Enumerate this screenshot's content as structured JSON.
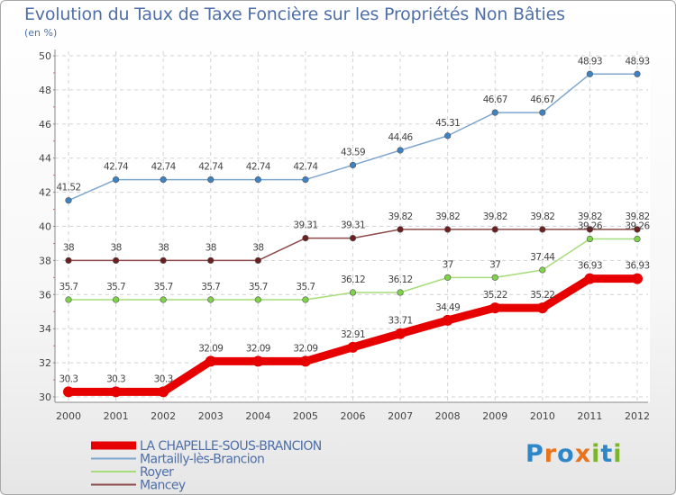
{
  "header": {
    "title": "Evolution du Taux de Taxe Foncière sur les Propriétés Non Bâties",
    "unit": "(en %)"
  },
  "brand": {
    "letters": [
      "P",
      "r",
      "o",
      "x",
      "i",
      "t",
      "i"
    ],
    "colors": [
      "#2f87c8",
      "#e8731c",
      "#2f87c8",
      "#e8731c",
      "#7cb42a",
      "#2f87c8",
      "#7cb42a"
    ]
  },
  "chart_data": {
    "type": "line",
    "title": "Evolution du Taux de Taxe Foncière sur les Propriétés Non Bâties",
    "ylabel": "(en %)",
    "x": [
      "2000",
      "2001",
      "2002",
      "2003",
      "2004",
      "2005",
      "2006",
      "2007",
      "2008",
      "2009",
      "2010",
      "2011",
      "2012"
    ],
    "ylim": [
      30,
      50
    ],
    "yticks": [
      "30",
      "32",
      "34",
      "36",
      "38",
      "40",
      "42",
      "44",
      "46",
      "48",
      "50"
    ],
    "grid": true,
    "legend_position": "bottom-left",
    "series": [
      {
        "name": "LA CHAPELLE-SOUS-BRANCION",
        "color": "#e60000",
        "width": 9,
        "values": [
          30.3,
          30.3,
          30.3,
          32.09,
          32.09,
          32.09,
          32.91,
          33.71,
          34.49,
          35.22,
          35.22,
          36.93,
          36.93
        ],
        "labels": [
          "30.3",
          "30.3",
          "30.3",
          "32.09",
          "32.09",
          "32.09",
          "32.91",
          "33.71",
          "34.49",
          "35.22",
          "35.22",
          "36.93",
          "36.93"
        ]
      },
      {
        "name": "Martailly-lès-Brancion",
        "color": "#7fa6cf",
        "width": 1.5,
        "values": [
          41.52,
          42.74,
          42.74,
          42.74,
          42.74,
          42.74,
          43.59,
          44.46,
          45.31,
          46.67,
          46.67,
          48.93,
          48.93
        ],
        "labels": [
          "41.52",
          "42.74",
          "42.74",
          "42.74",
          "42.74",
          "42.74",
          "43.59",
          "44.46",
          "45.31",
          "46.67",
          "46.67",
          "48.93",
          "48.93"
        ]
      },
      {
        "name": "Royer",
        "color": "#a6dc7a",
        "width": 1.5,
        "values": [
          35.7,
          35.7,
          35.7,
          35.7,
          35.7,
          35.7,
          36.12,
          36.12,
          37,
          37,
          37.44,
          39.26,
          39.26
        ],
        "labels": [
          "35.7",
          "35.7",
          "35.7",
          "35.7",
          "35.7",
          "35.7",
          "36.12",
          "36.12",
          "37",
          "37",
          "37.44",
          "39.26",
          "39.26"
        ]
      },
      {
        "name": "Mancey",
        "color": "#8c4a4a",
        "width": 1.5,
        "values": [
          38,
          38,
          38,
          38,
          38,
          39.31,
          39.31,
          39.82,
          39.82,
          39.82,
          39.82,
          39.82,
          39.82
        ],
        "labels": [
          "38",
          "38",
          "38",
          "38",
          "38",
          "39.31",
          "39.31",
          "39.82",
          "39.82",
          "39.82",
          "39.82",
          "39.82",
          "39.82"
        ]
      }
    ]
  }
}
